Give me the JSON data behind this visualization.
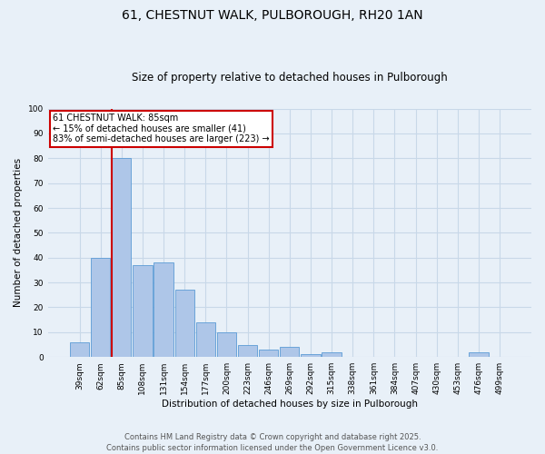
{
  "title_line1": "61, CHESTNUT WALK, PULBOROUGH, RH20 1AN",
  "title_line2": "Size of property relative to detached houses in Pulborough",
  "xlabel": "Distribution of detached houses by size in Pulborough",
  "ylabel": "Number of detached properties",
  "categories": [
    "39sqm",
    "62sqm",
    "85sqm",
    "108sqm",
    "131sqm",
    "154sqm",
    "177sqm",
    "200sqm",
    "223sqm",
    "246sqm",
    "269sqm",
    "292sqm",
    "315sqm",
    "338sqm",
    "361sqm",
    "384sqm",
    "407sqm",
    "430sqm",
    "453sqm",
    "476sqm",
    "499sqm"
  ],
  "values": [
    6,
    40,
    80,
    37,
    38,
    27,
    14,
    10,
    5,
    3,
    4,
    1,
    2,
    0,
    0,
    0,
    0,
    0,
    0,
    2,
    0
  ],
  "bar_color": "#aec6e8",
  "bar_edge_color": "#5b9bd5",
  "vline_color": "#cc0000",
  "annotation_box_text": "61 CHESTNUT WALK: 85sqm\n← 15% of detached houses are smaller (41)\n83% of semi-detached houses are larger (223) →",
  "annotation_box_color": "#cc0000",
  "annotation_box_bg": "#ffffff",
  "ylim": [
    0,
    100
  ],
  "yticks": [
    0,
    10,
    20,
    30,
    40,
    50,
    60,
    70,
    80,
    90,
    100
  ],
  "grid_color": "#c8d8e8",
  "background_color": "#e8f0f8",
  "footer_line1": "Contains HM Land Registry data © Crown copyright and database right 2025.",
  "footer_line2": "Contains public sector information licensed under the Open Government Licence v3.0.",
  "title_fontsize": 10,
  "subtitle_fontsize": 8.5,
  "axis_label_fontsize": 7.5,
  "tick_fontsize": 6.5,
  "annotation_fontsize": 7,
  "footer_fontsize": 6
}
